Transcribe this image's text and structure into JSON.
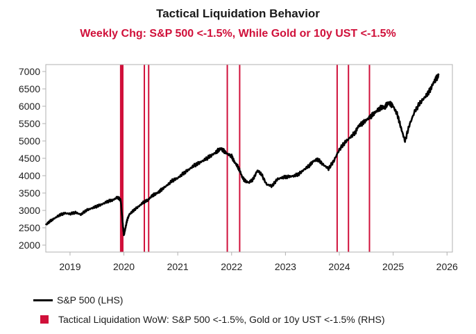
{
  "chart_data": {
    "type": "line",
    "title": "Tactical Liquidation Behavior",
    "subtitle": "Weekly Chg: S&P 500 <-1.5%, While Gold or 10y UST <-1.5%",
    "xlabel": "",
    "ylabel": "",
    "xlim": [
      2018.55,
      2026.1
    ],
    "ylim": [
      1800,
      7200
    ],
    "yticks": [
      2000,
      2500,
      3000,
      3500,
      4000,
      4500,
      5000,
      5500,
      6000,
      6500,
      7000
    ],
    "xticks": [
      {
        "label": "2019",
        "pos": 2019.0
      },
      {
        "label": "2020",
        "pos": 2020.0
      },
      {
        "label": "2021",
        "pos": 2021.0
      },
      {
        "label": "2022",
        "pos": 2022.0
      },
      {
        "label": "2023",
        "pos": 2023.0
      },
      {
        "label": "2024",
        "pos": 2024.0
      },
      {
        "label": "2025",
        "pos": 2025.0
      },
      {
        "label": "2026",
        "pos": 2026.0
      }
    ],
    "colors": {
      "line": "#000000",
      "event": "#d0103a",
      "subtitle": "#d0103a",
      "axis": "#b0b0b0"
    },
    "series": [
      {
        "name": "S&P 500 (LHS)",
        "x": [
          2018.55,
          2018.62,
          2018.7,
          2018.8,
          2018.9,
          2019.0,
          2019.1,
          2019.2,
          2019.3,
          2019.4,
          2019.5,
          2019.6,
          2019.7,
          2019.8,
          2019.88,
          2019.94,
          2019.98,
          2020.0,
          2020.03,
          2020.06,
          2020.1,
          2020.18,
          2020.28,
          2020.36,
          2020.45,
          2020.52,
          2020.58,
          2020.64,
          2020.7,
          2020.8,
          2020.9,
          2021.0,
          2021.1,
          2021.2,
          2021.3,
          2021.4,
          2021.5,
          2021.6,
          2021.7,
          2021.75,
          2021.8,
          2021.85,
          2021.9,
          2022.0,
          2022.05,
          2022.1,
          2022.15,
          2022.2,
          2022.25,
          2022.32,
          2022.4,
          2022.48,
          2022.55,
          2022.65,
          2022.75,
          2022.85,
          2022.95,
          2023.05,
          2023.15,
          2023.25,
          2023.35,
          2023.45,
          2023.52,
          2023.6,
          2023.7,
          2023.8,
          2023.9,
          2024.0,
          2024.1,
          2024.2,
          2024.3,
          2024.35,
          2024.42,
          2024.5,
          2024.58,
          2024.65,
          2024.72,
          2024.8,
          2024.84,
          2024.88,
          2024.92,
          2024.96,
          2025.0,
          2025.08,
          2025.15,
          2025.22,
          2025.3,
          2025.4,
          2025.5,
          2025.6,
          2025.68,
          2025.75,
          2025.8,
          2025.85
        ],
        "values": [
          2580,
          2680,
          2760,
          2860,
          2920,
          2900,
          2940,
          2880,
          3000,
          3060,
          3120,
          3180,
          3260,
          3300,
          3380,
          3300,
          2600,
          2280,
          2500,
          2720,
          2880,
          3000,
          3120,
          3230,
          3300,
          3420,
          3470,
          3520,
          3600,
          3720,
          3860,
          3930,
          4060,
          4170,
          4290,
          4370,
          4460,
          4560,
          4660,
          4730,
          4780,
          4720,
          4650,
          4560,
          4400,
          4300,
          4150,
          3950,
          3850,
          3800,
          3900,
          4150,
          4050,
          3750,
          3700,
          3900,
          3950,
          3970,
          3990,
          4050,
          4180,
          4300,
          4420,
          4470,
          4320,
          4200,
          4430,
          4750,
          4950,
          5100,
          5250,
          5420,
          5500,
          5600,
          5700,
          5800,
          5900,
          5980,
          5950,
          6050,
          6100,
          6050,
          6000,
          5750,
          5350,
          5000,
          5450,
          5850,
          6100,
          6280,
          6450,
          6680,
          6800,
          6900
        ]
      },
      {
        "name": "Tactical Liquidation WoW: S&P 500 <-1.5%, Gold or 10y UST <-1.5% (RHS)",
        "events": [
          2019.94,
          2019.96,
          2019.98,
          2020.38,
          2020.46,
          2021.92,
          2022.15,
          2023.96,
          2024.17,
          2024.56
        ]
      }
    ],
    "legend": [
      {
        "label": "S&P 500 (LHS)"
      },
      {
        "label": "Tactical Liquidation WoW: S&P 500 <-1.5%, Gold or 10y UST <-1.5% (RHS)"
      }
    ]
  }
}
